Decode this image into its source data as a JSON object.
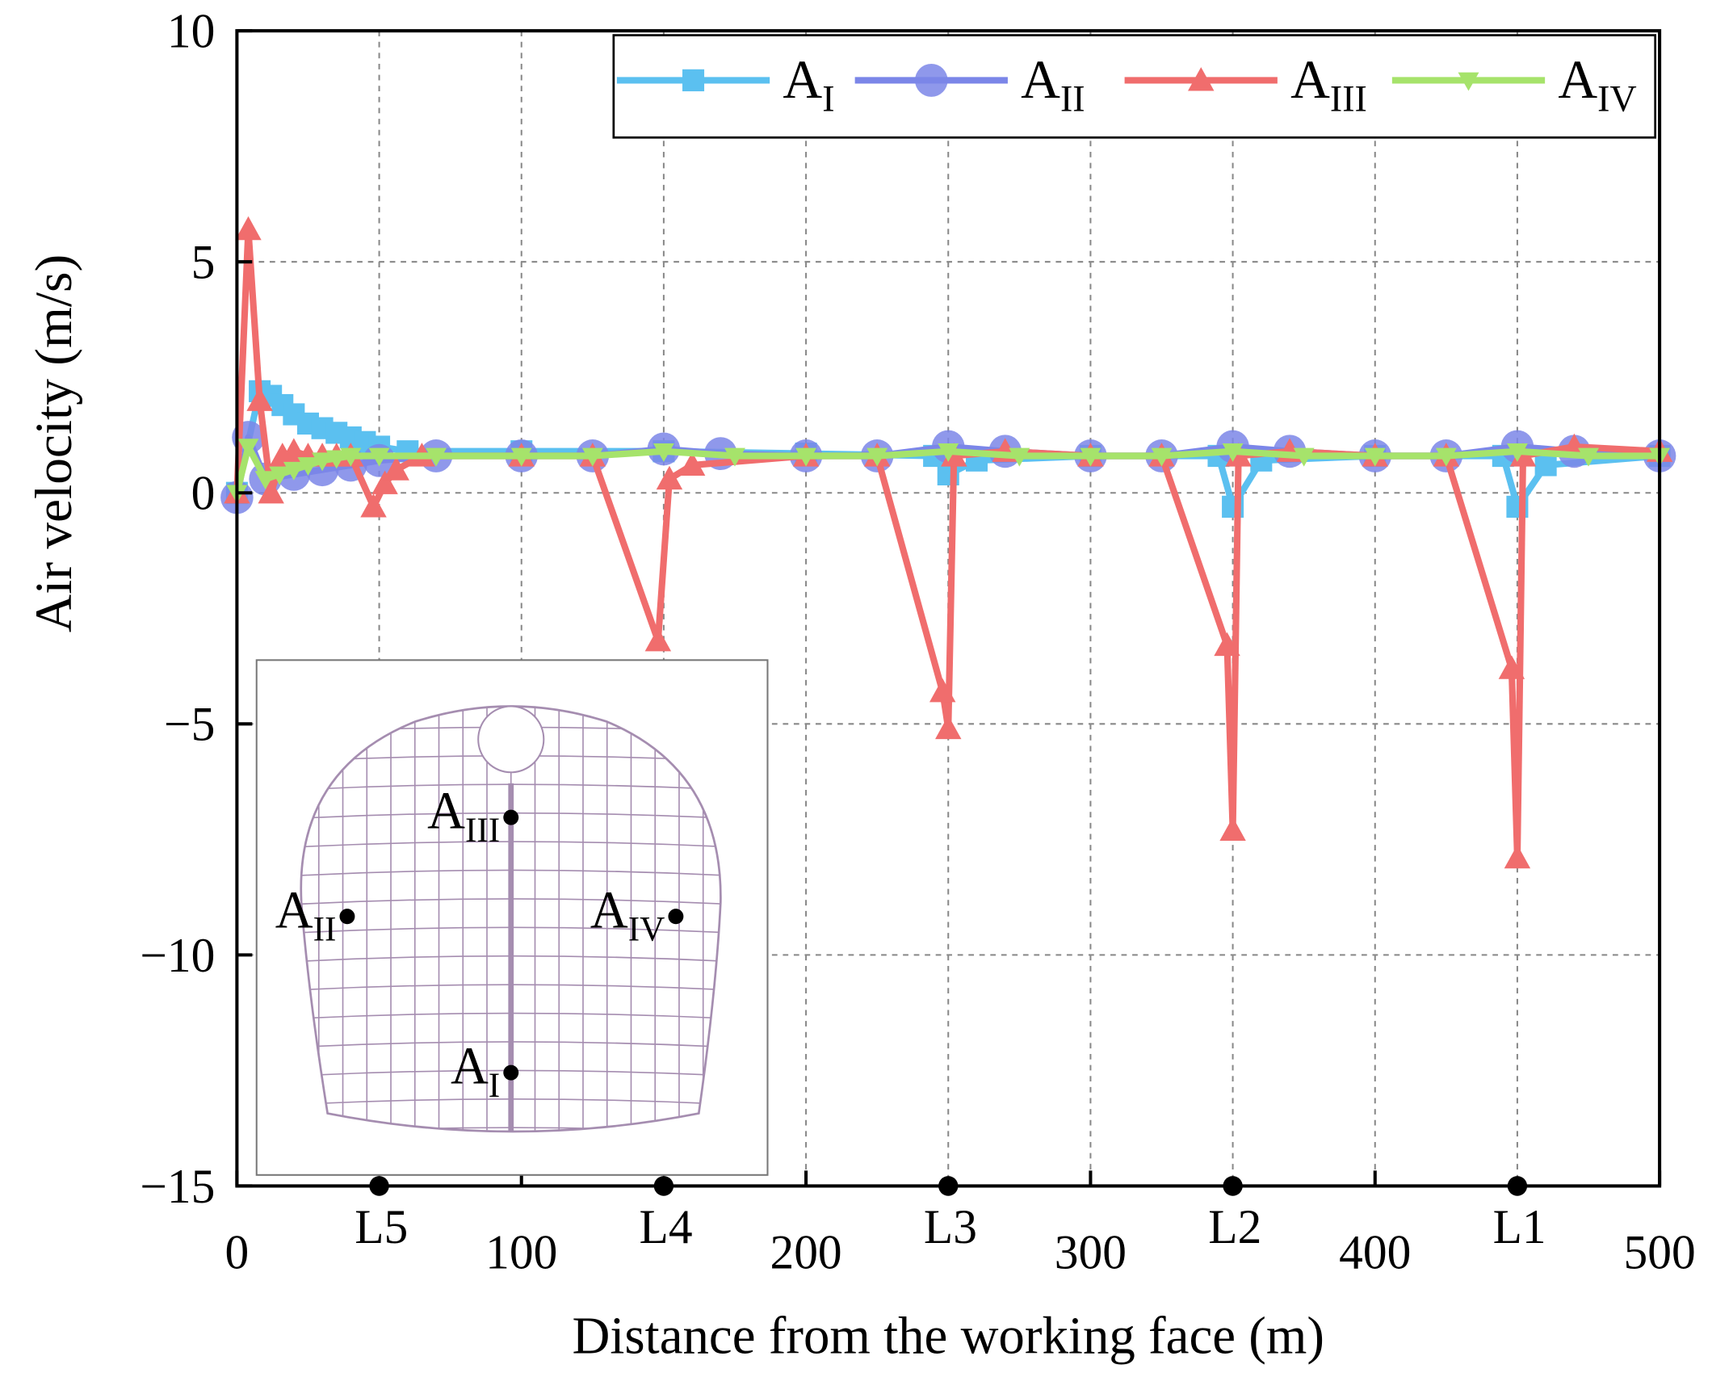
{
  "chart_data": {
    "type": "line",
    "x_label": "Distance from the working face (m)",
    "y_label": "Air velocity (m/s)",
    "xlim": [
      0,
      500
    ],
    "ylim": [
      -15,
      10
    ],
    "xticks": [
      0,
      100,
      200,
      300,
      400,
      500
    ],
    "xgrid": [
      50,
      150,
      250,
      350,
      450
    ],
    "yticks": [
      {
        "value": -15,
        "label": "−15"
      },
      {
        "value": -10,
        "label": "−10"
      },
      {
        "value": -5,
        "label": "−5"
      },
      0,
      5,
      10
    ],
    "grid": true,
    "legend": "top-right",
    "sections": [
      {
        "label": "L5",
        "x": 50
      },
      {
        "label": "L4",
        "x": 150
      },
      {
        "label": "L3",
        "x": 250
      },
      {
        "label": "L2",
        "x": 350
      },
      {
        "label": "L1",
        "x": 450
      }
    ],
    "series": [
      {
        "name": "A",
        "sub": "I",
        "color": "#5bc0f0",
        "marker": "square",
        "x": [
          0,
          8,
          12,
          16,
          20,
          25,
          30,
          35,
          40,
          45,
          50,
          60,
          100,
          150,
          200,
          245,
          250,
          260,
          300,
          345,
          350,
          360,
          400,
          445,
          450,
          460,
          500
        ],
        "values": [
          0,
          2.2,
          2.1,
          1.9,
          1.7,
          1.5,
          1.4,
          1.3,
          1.2,
          1.1,
          1.0,
          0.9,
          0.9,
          0.9,
          0.85,
          0.8,
          0.4,
          0.7,
          0.8,
          0.8,
          -0.3,
          0.7,
          0.8,
          0.8,
          -0.3,
          0.6,
          0.8
        ]
      },
      {
        "name": "A",
        "sub": "II",
        "color": "#7b86e8",
        "marker": "circle",
        "x": [
          0,
          4,
          10,
          20,
          30,
          40,
          50,
          70,
          100,
          125,
          150,
          170,
          200,
          225,
          250,
          270,
          300,
          325,
          350,
          370,
          400,
          425,
          450,
          470,
          500
        ],
        "values": [
          -0.1,
          1.2,
          0.3,
          0.4,
          0.5,
          0.6,
          0.7,
          0.8,
          0.8,
          0.8,
          0.95,
          0.85,
          0.8,
          0.8,
          1.0,
          0.9,
          0.8,
          0.8,
          1.0,
          0.9,
          0.8,
          0.8,
          1.0,
          0.9,
          0.8
        ]
      },
      {
        "name": "A",
        "sub": "III",
        "color": "#f06d6d",
        "marker": "triangle-up",
        "x": [
          0,
          4,
          8,
          12,
          16,
          20,
          25,
          30,
          35,
          40,
          48,
          52,
          56,
          65,
          100,
          125,
          148,
          152,
          160,
          200,
          225,
          248,
          250,
          252,
          270,
          300,
          325,
          348,
          350,
          352,
          370,
          400,
          425,
          448,
          450,
          452,
          470,
          500
        ],
        "values": [
          0,
          5.7,
          2,
          0,
          0.8,
          0.9,
          0.8,
          0.8,
          0.8,
          0.8,
          -0.3,
          0.2,
          0.5,
          0.8,
          0.8,
          0.8,
          -3.2,
          0.3,
          0.6,
          0.8,
          0.8,
          -4.3,
          -5.1,
          0.8,
          0.9,
          0.8,
          0.8,
          -3.3,
          -7.3,
          0.8,
          0.9,
          0.8,
          0.8,
          -3.8,
          -7.9,
          0.8,
          1.0,
          0.9
        ]
      },
      {
        "name": "A",
        "sub": "IV",
        "color": "#a6e36b",
        "marker": "triangle-down",
        "x": [
          0,
          4,
          10,
          15,
          20,
          25,
          30,
          35,
          40,
          50,
          70,
          100,
          125,
          150,
          175,
          200,
          225,
          250,
          275,
          300,
          325,
          350,
          375,
          400,
          425,
          450,
          475,
          500
        ],
        "values": [
          0,
          1.0,
          0.3,
          0.4,
          0.5,
          0.6,
          0.7,
          0.75,
          0.8,
          0.8,
          0.8,
          0.8,
          0.8,
          0.9,
          0.8,
          0.8,
          0.8,
          0.9,
          0.8,
          0.8,
          0.8,
          0.9,
          0.8,
          0.8,
          0.8,
          0.9,
          0.8,
          0.8
        ]
      }
    ]
  },
  "inset": {
    "points": [
      {
        "name": "A",
        "sub": "III"
      },
      {
        "name": "A",
        "sub": "II"
      },
      {
        "name": "A",
        "sub": "IV"
      },
      {
        "name": "A",
        "sub": "I"
      }
    ]
  }
}
